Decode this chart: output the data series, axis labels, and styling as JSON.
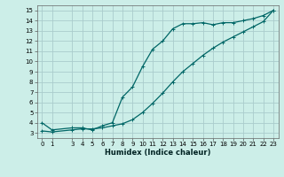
{
  "xlabel": "Humidex (Indice chaleur)",
  "bg_color": "#cceee8",
  "grid_color": "#aacccc",
  "line_color": "#006666",
  "xlim": [
    -0.5,
    23.5
  ],
  "ylim": [
    2.5,
    15.5
  ],
  "xticks": [
    0,
    1,
    3,
    4,
    5,
    6,
    7,
    8,
    9,
    10,
    11,
    12,
    13,
    14,
    15,
    16,
    17,
    18,
    19,
    20,
    21,
    22,
    23
  ],
  "yticks": [
    3,
    4,
    5,
    6,
    7,
    8,
    9,
    10,
    11,
    12,
    13,
    14,
    15
  ],
  "line1_x": [
    0,
    1,
    3,
    4,
    5,
    6,
    7,
    8,
    9,
    10,
    11,
    12,
    13,
    14,
    15,
    16,
    17,
    18,
    19,
    20,
    21,
    22,
    23
  ],
  "line1_y": [
    4.0,
    3.3,
    3.5,
    3.5,
    3.3,
    3.7,
    4.0,
    6.5,
    7.5,
    9.5,
    11.2,
    12.0,
    13.2,
    13.7,
    13.7,
    13.8,
    13.6,
    13.8,
    13.8,
    14.0,
    14.2,
    14.5,
    15.0
  ],
  "line2_x": [
    0,
    1,
    3,
    4,
    5,
    6,
    7,
    8,
    9,
    10,
    11,
    12,
    13,
    14,
    15,
    16,
    17,
    18,
    19,
    20,
    21,
    22,
    23
  ],
  "line2_y": [
    3.2,
    3.1,
    3.3,
    3.4,
    3.4,
    3.5,
    3.7,
    3.9,
    4.3,
    5.0,
    5.9,
    6.9,
    8.0,
    9.0,
    9.8,
    10.6,
    11.3,
    11.9,
    12.4,
    12.9,
    13.4,
    13.9,
    15.0
  ],
  "xlabel_fontsize": 6,
  "tick_fontsize": 5,
  "linewidth": 0.9,
  "markersize": 2.5,
  "markeredgewidth": 0.7
}
